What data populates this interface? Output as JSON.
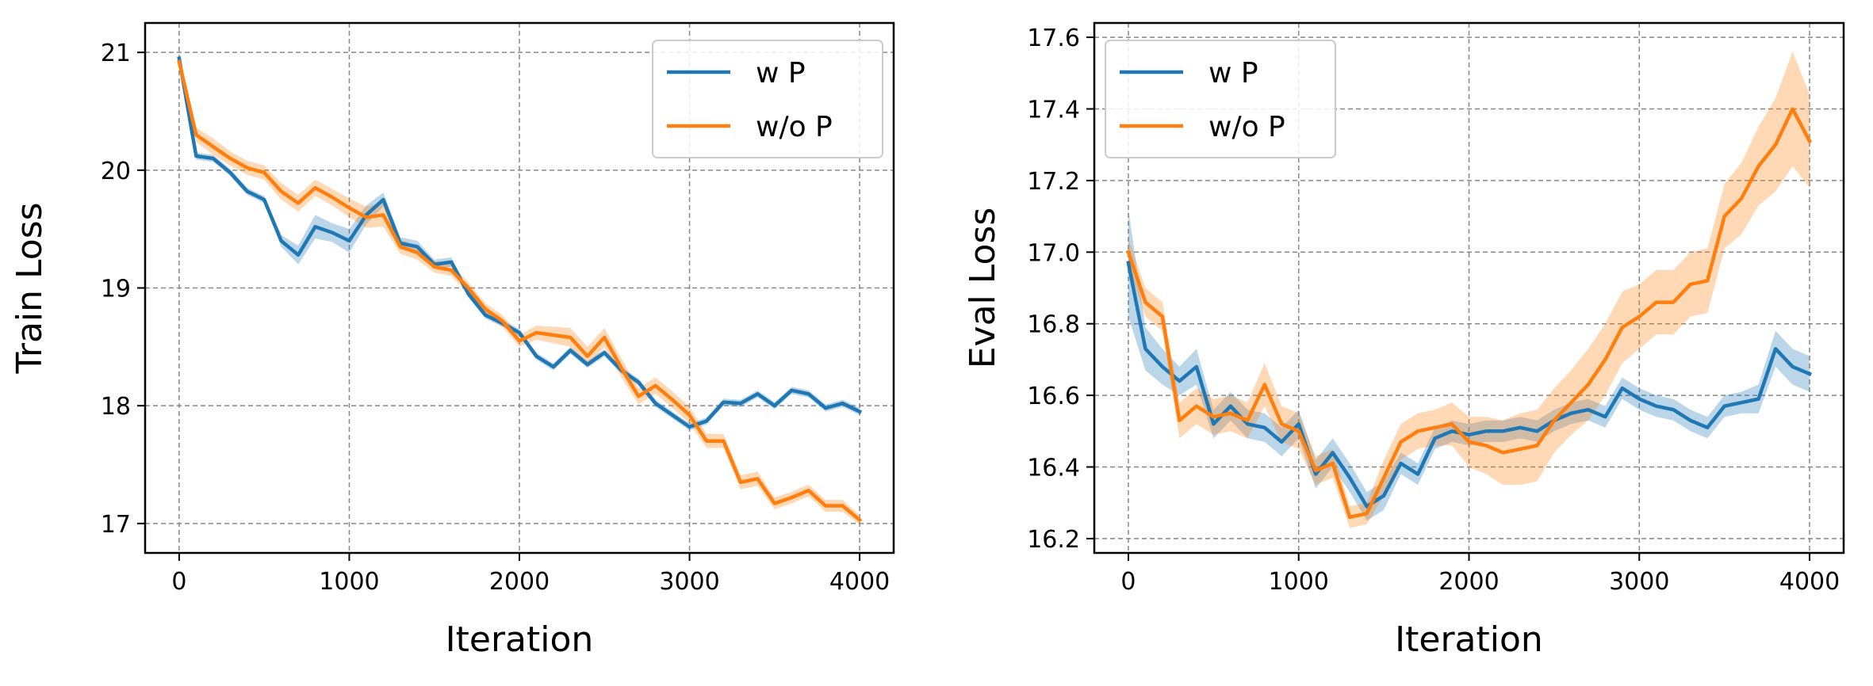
{
  "chart_data": [
    {
      "type": "line",
      "xlabel": "Iteration",
      "ylabel": "Train Loss",
      "xlim": [
        -200,
        4200
      ],
      "ylim": [
        16.75,
        21.25
      ],
      "xticks": [
        0,
        1000,
        2000,
        3000,
        4000
      ],
      "yticks": [
        17,
        18,
        19,
        20,
        21
      ],
      "grid": true,
      "legend_position": "top-right",
      "x": [
        0,
        100,
        200,
        300,
        400,
        500,
        600,
        700,
        800,
        900,
        1000,
        1100,
        1200,
        1300,
        1400,
        1500,
        1600,
        1700,
        1800,
        1900,
        2000,
        2100,
        2200,
        2300,
        2400,
        2500,
        2600,
        2700,
        2800,
        2900,
        3000,
        3100,
        3200,
        3300,
        3400,
        3500,
        3600,
        3700,
        3800,
        3900,
        4000
      ],
      "series": [
        {
          "name": "w P",
          "color": "#1f77b4",
          "values": [
            20.95,
            20.12,
            20.1,
            19.98,
            19.82,
            19.75,
            19.4,
            19.28,
            19.52,
            19.47,
            19.4,
            19.62,
            19.75,
            19.38,
            19.35,
            19.2,
            19.22,
            18.95,
            18.77,
            18.7,
            18.62,
            18.42,
            18.33,
            18.47,
            18.35,
            18.45,
            18.3,
            18.2,
            18.02,
            17.92,
            17.82,
            17.87,
            18.03,
            18.02,
            18.1,
            18.0,
            18.13,
            18.1,
            17.98,
            18.02,
            17.95
          ],
          "band": [
            0.02,
            0.03,
            0.03,
            0.03,
            0.03,
            0.03,
            0.05,
            0.08,
            0.1,
            0.08,
            0.1,
            0.08,
            0.06,
            0.05,
            0.05,
            0.04,
            0.04,
            0.03,
            0.03,
            0.03,
            0.03,
            0.03,
            0.03,
            0.03,
            0.03,
            0.03,
            0.03,
            0.03,
            0.03,
            0.03,
            0.03,
            0.03,
            0.03,
            0.03,
            0.03,
            0.03,
            0.03,
            0.03,
            0.03,
            0.03,
            0.03
          ]
        },
        {
          "name": "w/o P",
          "color": "#ff7f0e",
          "values": [
            20.92,
            20.3,
            20.2,
            20.1,
            20.02,
            19.98,
            19.82,
            19.72,
            19.85,
            19.77,
            19.68,
            19.6,
            19.62,
            19.35,
            19.3,
            19.18,
            19.15,
            19.0,
            18.82,
            18.72,
            18.55,
            18.62,
            18.6,
            18.58,
            18.42,
            18.58,
            18.32,
            18.08,
            18.17,
            18.05,
            17.92,
            17.7,
            17.7,
            17.35,
            17.38,
            17.17,
            17.22,
            17.28,
            17.15,
            17.15,
            17.03
          ],
          "band": [
            0.03,
            0.06,
            0.07,
            0.06,
            0.06,
            0.06,
            0.07,
            0.07,
            0.07,
            0.07,
            0.08,
            0.09,
            0.1,
            0.06,
            0.06,
            0.05,
            0.05,
            0.05,
            0.05,
            0.05,
            0.05,
            0.06,
            0.07,
            0.08,
            0.08,
            0.08,
            0.08,
            0.07,
            0.07,
            0.07,
            0.07,
            0.06,
            0.06,
            0.06,
            0.06,
            0.05,
            0.05,
            0.05,
            0.05,
            0.05,
            0.04
          ]
        }
      ]
    },
    {
      "type": "line",
      "xlabel": "Iteration",
      "ylabel": "Eval Loss",
      "xlim": [
        -200,
        4200
      ],
      "ylim": [
        16.16,
        17.64
      ],
      "xticks": [
        0,
        1000,
        2000,
        3000,
        4000
      ],
      "yticks": [
        16.2,
        16.4,
        16.6,
        16.8,
        17.0,
        17.2,
        17.4,
        17.6
      ],
      "grid": true,
      "legend_position": "top-left",
      "x": [
        0,
        100,
        200,
        300,
        400,
        500,
        600,
        700,
        800,
        900,
        1000,
        1100,
        1200,
        1300,
        1400,
        1500,
        1600,
        1700,
        1800,
        1900,
        2000,
        2100,
        2200,
        2300,
        2400,
        2500,
        2600,
        2700,
        2800,
        2900,
        3000,
        3100,
        3200,
        3300,
        3400,
        3500,
        3600,
        3700,
        3800,
        3900,
        4000
      ],
      "series": [
        {
          "name": "w P",
          "color": "#1f77b4",
          "values": [
            16.97,
            16.73,
            16.68,
            16.64,
            16.68,
            16.52,
            16.57,
            16.52,
            16.51,
            16.47,
            16.52,
            16.38,
            16.44,
            16.37,
            16.29,
            16.32,
            16.41,
            16.38,
            16.48,
            16.5,
            16.49,
            16.5,
            16.5,
            16.51,
            16.5,
            16.53,
            16.55,
            16.56,
            16.54,
            16.62,
            16.59,
            16.57,
            16.56,
            16.53,
            16.51,
            16.57,
            16.58,
            16.59,
            16.73,
            16.68,
            16.66
          ],
          "band": [
            0.15,
            0.06,
            0.05,
            0.04,
            0.05,
            0.04,
            0.04,
            0.04,
            0.04,
            0.04,
            0.04,
            0.04,
            0.04,
            0.04,
            0.04,
            0.04,
            0.03,
            0.03,
            0.03,
            0.03,
            0.03,
            0.03,
            0.03,
            0.03,
            0.03,
            0.03,
            0.03,
            0.03,
            0.03,
            0.03,
            0.03,
            0.03,
            0.03,
            0.03,
            0.03,
            0.03,
            0.03,
            0.04,
            0.05,
            0.05,
            0.05
          ]
        },
        {
          "name": "w/o P",
          "color": "#ff7f0e",
          "values": [
            17.0,
            16.86,
            16.82,
            16.53,
            16.57,
            16.54,
            16.55,
            16.53,
            16.63,
            16.52,
            16.5,
            16.39,
            16.41,
            16.26,
            16.27,
            16.37,
            16.47,
            16.5,
            16.51,
            16.52,
            16.47,
            16.46,
            16.44,
            16.45,
            16.46,
            16.53,
            16.58,
            16.63,
            16.7,
            16.79,
            16.82,
            16.86,
            16.86,
            16.91,
            16.92,
            17.1,
            17.15,
            17.24,
            17.3,
            17.4,
            17.31
          ],
          "band": [
            0.04,
            0.04,
            0.04,
            0.05,
            0.05,
            0.05,
            0.05,
            0.05,
            0.06,
            0.05,
            0.05,
            0.04,
            0.04,
            0.03,
            0.03,
            0.05,
            0.05,
            0.05,
            0.05,
            0.06,
            0.07,
            0.08,
            0.09,
            0.1,
            0.1,
            0.09,
            0.09,
            0.1,
            0.1,
            0.1,
            0.09,
            0.09,
            0.09,
            0.09,
            0.09,
            0.09,
            0.1,
            0.11,
            0.13,
            0.16,
            0.13
          ]
        }
      ]
    }
  ]
}
